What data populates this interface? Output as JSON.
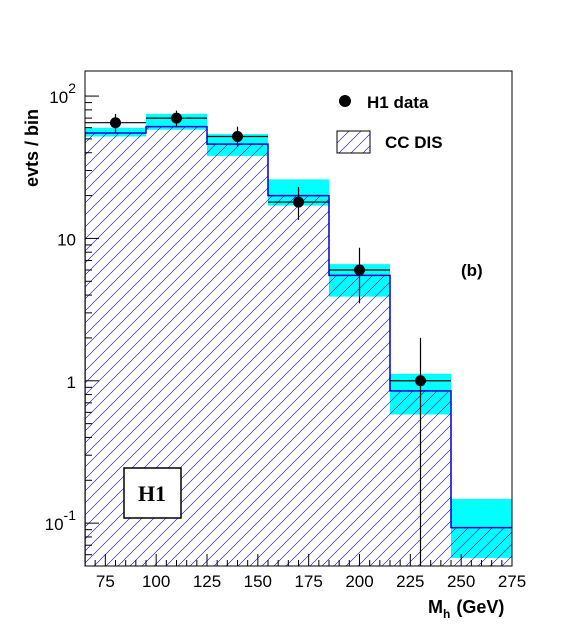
{
  "chart_data": {
    "type": "bar",
    "xlabel": "M",
    "xlabel_sub": "h",
    "xlabel_unit": "(GeV)",
    "ylabel": "evts / bin",
    "xlim": [
      65,
      275
    ],
    "ylim": [
      0.05,
      150
    ],
    "yscale": "log",
    "x_ticks": [
      75,
      100,
      125,
      150,
      175,
      200,
      225,
      250,
      275
    ],
    "y_ticks": [
      {
        "value": 0.1,
        "base": "10",
        "exp": "-1"
      },
      {
        "value": 1,
        "base": "1",
        "exp": ""
      },
      {
        "value": 10,
        "base": "10",
        "exp": ""
      },
      {
        "value": 100,
        "base": "10",
        "exp": "2"
      }
    ],
    "bins": [
      65,
      95,
      125,
      155,
      185,
      215,
      245,
      275
    ],
    "mc_values": [
      55,
      61,
      46,
      20,
      5.5,
      0.85,
      0.093
    ],
    "band_lo": [
      52,
      58,
      38,
      17,
      3.9,
      0.58,
      0.057
    ],
    "band_hi": [
      60,
      75,
      54,
      26,
      6.6,
      1.12,
      0.148
    ],
    "data": [
      {
        "x": 80,
        "y": 65,
        "ylo": 55,
        "yhi": 75
      },
      {
        "x": 110,
        "y": 70,
        "ylo": 61,
        "yhi": 79
      },
      {
        "x": 140,
        "y": 52,
        "ylo": 44,
        "yhi": 61
      },
      {
        "x": 170,
        "y": 18,
        "ylo": 13.5,
        "yhi": 23
      },
      {
        "x": 200,
        "y": 6,
        "ylo": 3.5,
        "yhi": 8.6
      },
      {
        "x": 230,
        "y": 1,
        "ylo": 0.04,
        "yhi": 2.0
      }
    ],
    "data_xerr": 15,
    "legend": {
      "data_label": "H1 data",
      "mc_label": "CC DIS",
      "placement": "top-right"
    },
    "panel_label": "(b)",
    "logo": "H1",
    "colors": {
      "band": "#00ffff",
      "mc_line": "#0000cc",
      "hatch": "#0000cc",
      "data": "#000000"
    }
  }
}
